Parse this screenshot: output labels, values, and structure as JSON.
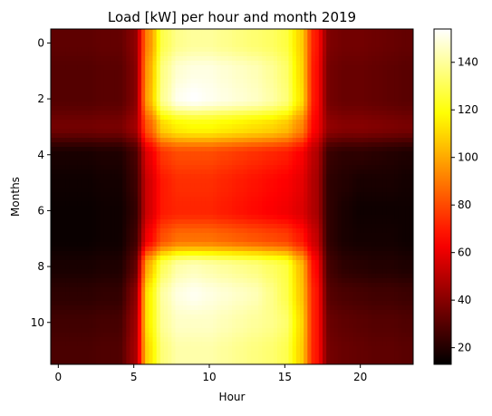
{
  "chart_data": {
    "type": "heatmap",
    "title": "Load [kW] per hour and month 2019",
    "xlabel": "Hour",
    "ylabel": "Months",
    "colormap": "hot",
    "interpolation": "bicubic",
    "x": [
      0,
      1,
      2,
      3,
      4,
      5,
      6,
      7,
      8,
      9,
      10,
      11,
      12,
      13,
      14,
      15,
      16,
      17,
      18,
      19,
      20,
      21,
      22,
      23
    ],
    "y": [
      0,
      1,
      2,
      3,
      4,
      5,
      6,
      7,
      8,
      9,
      10,
      11
    ],
    "x_ticks": [
      0,
      5,
      10,
      15,
      20
    ],
    "y_ticks": [
      0,
      2,
      4,
      6,
      8,
      10
    ],
    "xlim": [
      -0.5,
      23.5
    ],
    "ylim": [
      11.5,
      -0.5
    ],
    "colorbar": {
      "min": 13,
      "max": 154,
      "ticks": [
        20,
        40,
        60,
        80,
        100,
        120,
        140
      ]
    },
    "values": [
      [
        32,
        32,
        32,
        33,
        33,
        40,
        95,
        130,
        138,
        140,
        140,
        138,
        136,
        134,
        132,
        128,
        110,
        70,
        38,
        36,
        36,
        35,
        34,
        33
      ],
      [
        30,
        30,
        30,
        31,
        31,
        38,
        100,
        138,
        148,
        150,
        150,
        148,
        146,
        144,
        140,
        134,
        112,
        68,
        36,
        34,
        34,
        33,
        32,
        31
      ],
      [
        30,
        30,
        30,
        31,
        31,
        38,
        102,
        140,
        152,
        154,
        152,
        150,
        148,
        146,
        142,
        136,
        114,
        68,
        36,
        34,
        34,
        33,
        32,
        31
      ],
      [
        36,
        36,
        36,
        37,
        37,
        44,
        85,
        110,
        116,
        118,
        118,
        116,
        114,
        112,
        110,
        106,
        94,
        64,
        42,
        40,
        40,
        39,
        38,
        37
      ],
      [
        18,
        18,
        18,
        19,
        19,
        26,
        60,
        76,
        80,
        80,
        80,
        78,
        76,
        74,
        72,
        70,
        64,
        50,
        24,
        22,
        22,
        21,
        20,
        19
      ],
      [
        16,
        16,
        16,
        17,
        17,
        24,
        56,
        70,
        74,
        74,
        74,
        72,
        70,
        68,
        66,
        64,
        60,
        48,
        22,
        20,
        18,
        18,
        18,
        17
      ],
      [
        15,
        15,
        15,
        16,
        16,
        22,
        56,
        70,
        72,
        72,
        72,
        70,
        68,
        66,
        64,
        62,
        58,
        48,
        22,
        18,
        16,
        16,
        16,
        16
      ],
      [
        15,
        15,
        15,
        16,
        16,
        24,
        64,
        82,
        88,
        88,
        88,
        86,
        84,
        82,
        80,
        78,
        70,
        54,
        22,
        18,
        17,
        17,
        17,
        16
      ],
      [
        18,
        18,
        18,
        19,
        19,
        30,
        104,
        132,
        142,
        144,
        142,
        140,
        138,
        136,
        132,
        128,
        106,
        66,
        26,
        22,
        21,
        20,
        20,
        19
      ],
      [
        22,
        22,
        22,
        23,
        23,
        38,
        116,
        142,
        150,
        152,
        150,
        148,
        146,
        144,
        138,
        130,
        108,
        70,
        30,
        28,
        27,
        26,
        26,
        25
      ],
      [
        26,
        26,
        26,
        27,
        27,
        42,
        116,
        140,
        146,
        146,
        146,
        144,
        142,
        140,
        138,
        134,
        112,
        70,
        34,
        32,
        31,
        30,
        30,
        29
      ],
      [
        28,
        28,
        28,
        29,
        29,
        44,
        112,
        136,
        142,
        142,
        142,
        140,
        138,
        136,
        134,
        130,
        110,
        70,
        36,
        34,
        33,
        32,
        32,
        31
      ]
    ]
  }
}
